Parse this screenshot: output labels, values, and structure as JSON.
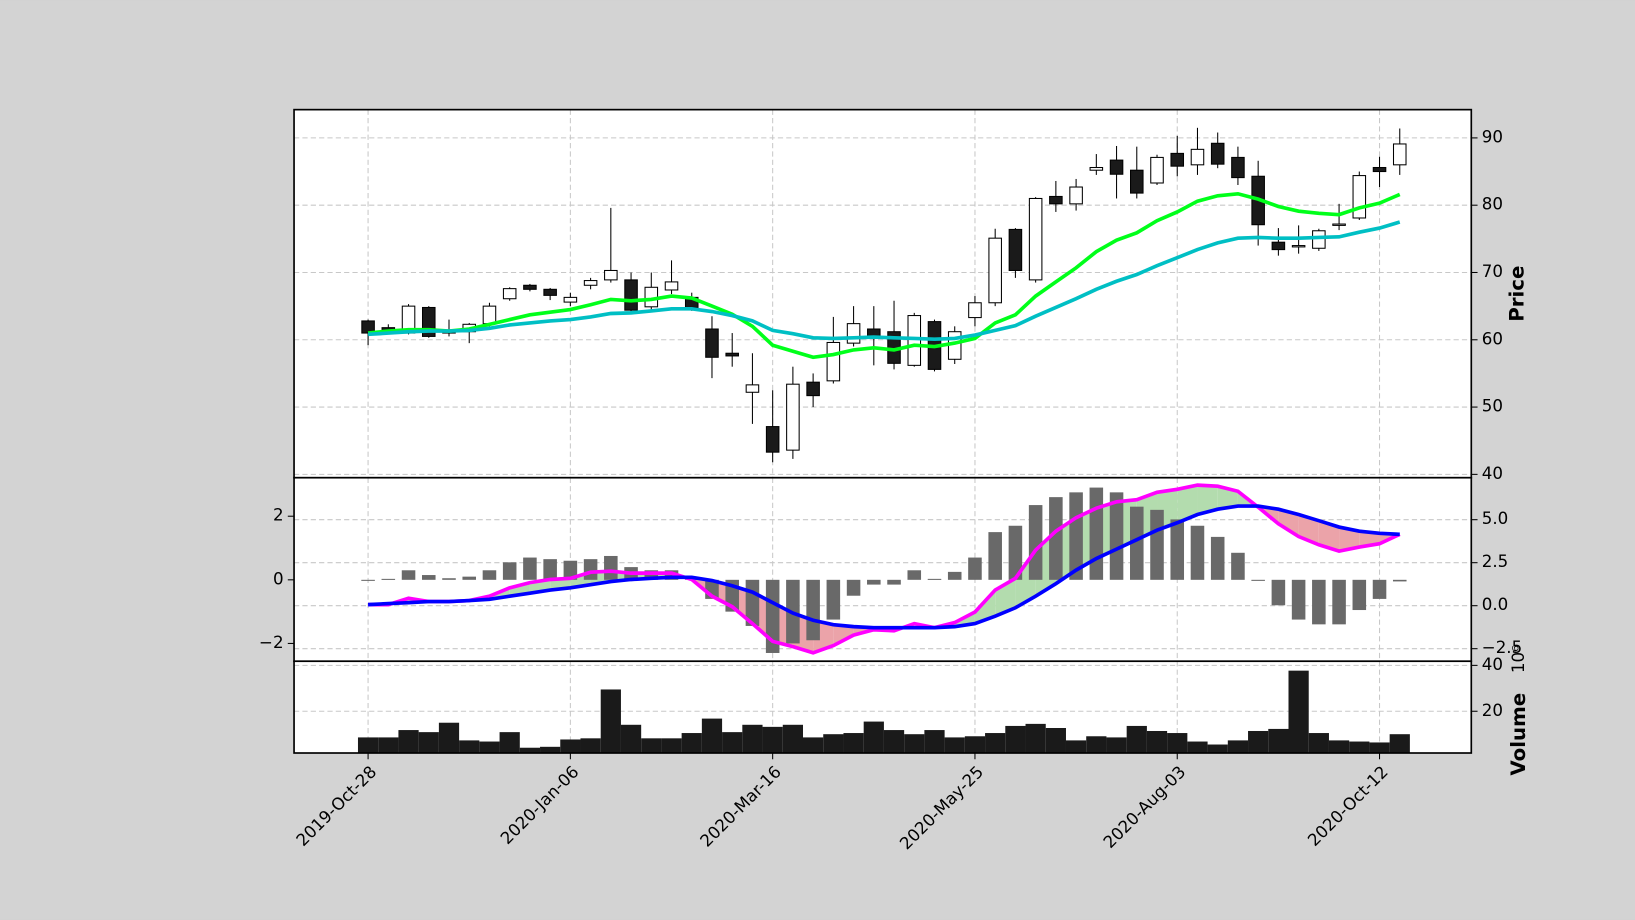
{
  "chart_data": [
    {
      "type": "candlestick",
      "ylabel": "Price",
      "open": [
        62.8,
        61.8,
        61,
        64.8,
        61.3,
        61.2,
        62.4,
        66.1,
        68.1,
        67.5,
        65.6,
        68.1,
        68.9,
        68.9,
        64.9,
        67.4,
        66.3,
        61.6,
        58,
        52.2,
        47.1,
        43.6,
        53.7,
        53.9,
        59.5,
        61.6,
        61.2,
        56.2,
        62.7,
        57.1,
        63.3,
        65.5,
        76.4,
        68.9,
        81.3,
        80.2,
        85.2,
        86.7,
        85.2,
        83.3,
        87.7,
        86,
        89.2,
        87.1,
        84.3,
        74.5,
        73.8,
        73.6,
        77,
        78.1,
        85.6,
        86
      ],
      "high": [
        63,
        62.3,
        65.3,
        65,
        63,
        62.5,
        65.5,
        67.8,
        68.3,
        67.7,
        67,
        69.2,
        79.6,
        70,
        70,
        71.8,
        67,
        63.5,
        61,
        58,
        52.5,
        56,
        55,
        63.4,
        65,
        65,
        65.8,
        64,
        63,
        62,
        66.5,
        76.5,
        76.6,
        81.2,
        83.6,
        83.9,
        87.6,
        88.8,
        88.7,
        87.5,
        90.3,
        91.5,
        90.8,
        88.7,
        86.6,
        76.6,
        77,
        76.5,
        80.2,
        85,
        87.2,
        91.4
      ],
      "low": [
        59.2,
        61,
        60.8,
        60.3,
        60.5,
        59.5,
        62,
        65.8,
        67.2,
        65.9,
        65,
        67.5,
        68.5,
        64,
        64.5,
        66.8,
        64.3,
        54.3,
        56,
        47.5,
        41.8,
        42.3,
        50,
        53.5,
        59,
        56.2,
        55.6,
        56,
        55.3,
        56.4,
        62,
        65,
        69.2,
        68.5,
        79,
        79.2,
        84.5,
        81,
        81,
        83,
        84.3,
        84.5,
        85.5,
        83,
        74,
        72.5,
        72.8,
        73.2,
        76.3,
        77.8,
        82.7,
        84.5
      ],
      "close": [
        61,
        61.4,
        65,
        60.5,
        61,
        62.3,
        65,
        67.6,
        67.5,
        66.6,
        66.3,
        68.8,
        70.3,
        64.4,
        67.8,
        68.6,
        64.8,
        57.4,
        57.6,
        53.3,
        43.3,
        53.4,
        51.7,
        59.6,
        62.4,
        60.5,
        56.5,
        63.6,
        55.6,
        61.2,
        65.5,
        75.1,
        70.3,
        81,
        80.2,
        82.7,
        85.6,
        84.6,
        81.8,
        87.1,
        85.8,
        88.3,
        86.1,
        84.1,
        77.1,
        73.4,
        74,
        76.2,
        77.2,
        84.4,
        85,
        89.1
      ],
      "up_color": "#ffffff",
      "down_color": "#1a1a1a",
      "series": [
        {
          "color": "#00ff1a",
          "values": [
            61,
            61.3,
            61.5,
            61.5,
            61.3,
            61.6,
            62.3,
            63,
            63.7,
            64.1,
            64.5,
            65.2,
            66,
            65.8,
            66,
            66.5,
            66.2,
            65,
            63.8,
            62,
            59.2,
            58.3,
            57.4,
            57.8,
            58.5,
            58.8,
            58.5,
            59.2,
            59,
            59.5,
            60.2,
            62.5,
            63.7,
            66.5,
            68.6,
            70.7,
            73.1,
            74.8,
            75.9,
            77.7,
            79,
            80.6,
            81.4,
            81.7,
            80.9,
            79.8,
            79.1,
            78.8,
            78.6,
            79.6,
            80.3,
            81.6
          ]
        },
        {
          "color": "#00bfc4",
          "values": [
            60.8,
            61,
            61.2,
            61.3,
            61.3,
            61.4,
            61.7,
            62.2,
            62.5,
            62.8,
            63,
            63.4,
            63.9,
            64,
            64.3,
            64.6,
            64.6,
            64.2,
            63.6,
            62.8,
            61.4,
            60.9,
            60.3,
            60.2,
            60.3,
            60.4,
            60.3,
            60.2,
            60.1,
            60.2,
            60.7,
            61.4,
            62.1,
            63.5,
            64.8,
            66.1,
            67.5,
            68.7,
            69.7,
            71,
            72.2,
            73.4,
            74.4,
            75.1,
            75.2,
            75.1,
            75.1,
            75.2,
            75.3,
            76,
            76.6,
            77.5
          ]
        }
      ],
      "ylim": [
        39.5,
        94.2
      ],
      "yticks": [
        40,
        50,
        60,
        70,
        80,
        90
      ],
      "grid": true
    },
    {
      "type": "macd",
      "histogram": {
        "color": "#696969",
        "values": [
          0,
          0.03,
          0.3,
          0.15,
          0.05,
          0.1,
          0.3,
          0.55,
          0.7,
          0.65,
          0.6,
          0.65,
          0.75,
          0.4,
          0.3,
          0.3,
          0.1,
          -0.6,
          -1.0,
          -1.45,
          -2.3,
          -2.0,
          -1.9,
          -1.25,
          -0.5,
          -0.15,
          -0.15,
          0.3,
          0.03,
          0.25,
          0.7,
          1.5,
          1.7,
          2.35,
          2.6,
          2.75,
          2.9,
          2.75,
          2.3,
          2.2,
          1.9,
          1.7,
          1.35,
          0.85,
          0,
          -0.8,
          -1.25,
          -1.4,
          -1.4,
          -0.95,
          -0.6,
          -0.05
        ]
      },
      "series": [
        {
          "color": "#ff00ff",
          "axis": "y2",
          "values": [
            0.06,
            0.06,
            0.43,
            0.24,
            0.24,
            0.3,
            0.55,
            1.04,
            1.34,
            1.52,
            1.59,
            1.95,
            2.01,
            1.89,
            1.89,
            1.89,
            1.52,
            0.55,
            -0.06,
            -1.04,
            -2.07,
            -2.38,
            -2.74,
            -2.32,
            -1.71,
            -1.4,
            -1.46,
            -1.04,
            -1.28,
            -0.98,
            -0.37,
            0.91,
            1.59,
            3.23,
            4.33,
            5.12,
            5.67,
            6.04,
            6.16,
            6.59,
            6.77,
            7.01,
            6.95,
            6.65,
            5.73,
            4.76,
            4.02,
            3.54,
            3.17,
            3.41,
            3.6,
            4.15
          ]
        },
        {
          "color": "#0000ff",
          "axis": "y2",
          "values": [
            0.06,
            0.12,
            0.18,
            0.24,
            0.24,
            0.3,
            0.37,
            0.55,
            0.73,
            0.91,
            1.04,
            1.22,
            1.4,
            1.52,
            1.59,
            1.65,
            1.65,
            1.46,
            1.16,
            0.79,
            0.18,
            -0.43,
            -0.85,
            -1.1,
            -1.22,
            -1.28,
            -1.28,
            -1.28,
            -1.28,
            -1.22,
            -1.04,
            -0.61,
            -0.12,
            0.55,
            1.28,
            2.07,
            2.74,
            3.29,
            3.84,
            4.39,
            4.82,
            5.3,
            5.61,
            5.79,
            5.79,
            5.61,
            5.3,
            4.94,
            4.57,
            4.33,
            4.21,
            4.15
          ]
        }
      ],
      "fill_colors": {
        "above": "#b3dcae",
        "below": "#eba3a9"
      },
      "ylim": [
        -2.56,
        3.21
      ],
      "yticks": [
        {
          "value": -2,
          "label": "−2"
        },
        0,
        2
      ],
      "y2lim": [
        -3.23,
        7.44
      ],
      "y2ticks": [
        {
          "value": -2.5,
          "label": "−2.5"
        },
        {
          "value": 0,
          "label": "0.0"
        },
        {
          "value": 2.5,
          "label": "2.5"
        },
        {
          "value": 5,
          "label": "5.0"
        }
      ],
      "grid": true
    },
    {
      "type": "bar",
      "ylabel": "Volume",
      "offset_label": "10⁶",
      "categories": [
        "2019-Oct-28",
        null,
        null,
        null,
        null,
        null,
        null,
        null,
        null,
        null,
        "2020-Jan-06",
        null,
        null,
        null,
        null,
        null,
        null,
        null,
        null,
        null,
        "2020-Mar-16",
        null,
        null,
        null,
        null,
        null,
        null,
        null,
        null,
        null,
        "2020-May-25",
        null,
        null,
        null,
        null,
        null,
        null,
        null,
        null,
        null,
        "2020-Aug-03",
        null,
        null,
        null,
        null,
        null,
        null,
        null,
        null,
        null,
        "2020-Oct-12",
        null
      ],
      "values": [
        8.6,
        8.6,
        11.8,
        10.9,
        15,
        7.3,
        6.8,
        10.9,
        4.1,
        4.5,
        7.7,
        8.2,
        29.5,
        14.1,
        8.2,
        8.2,
        10.5,
        16.8,
        10.9,
        14.1,
        13.2,
        14.1,
        8.6,
        10,
        10.5,
        15.5,
        11.8,
        10,
        11.8,
        8.6,
        9.1,
        10.5,
        13.6,
        14.5,
        12.7,
        7.3,
        9.1,
        8.6,
        13.6,
        11.4,
        10.5,
        6.8,
        5.5,
        7.3,
        11.4,
        12.3,
        37.7,
        10.5,
        7.3,
        6.8,
        6.4,
        10
      ],
      "color": "#1a1a1a",
      "ylim": [
        1.8,
        41.8
      ],
      "yticks": [
        20,
        40
      ],
      "grid": true
    }
  ]
}
